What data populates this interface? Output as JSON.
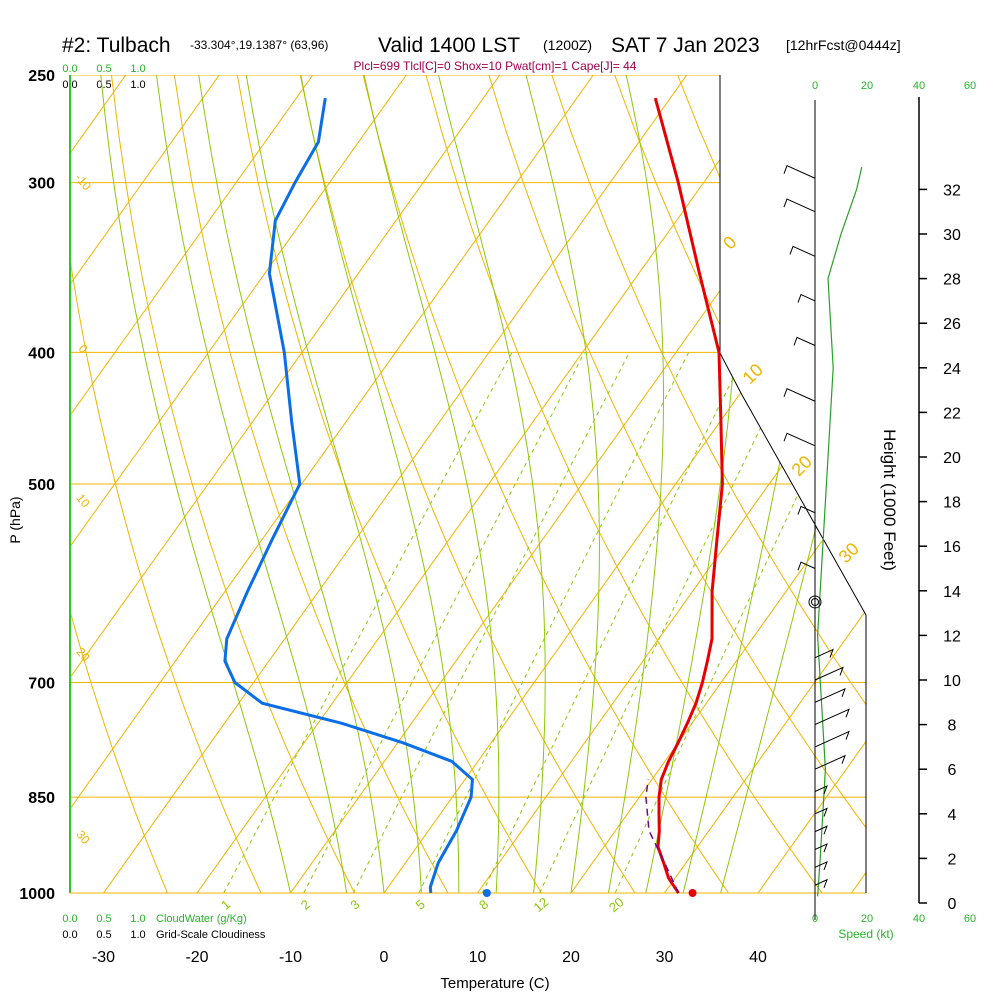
{
  "header": {
    "station": "#2: Tulbach",
    "coords": "-33.304°,19.1387° (63,96)",
    "valid": "Valid 1400 LST",
    "utc": "(1200Z)",
    "date": "SAT 7 Jan 2023",
    "forecast": "[12hrFcst@0444z]",
    "indices": "Plcl=699 Tlcl[C]=0 Shox=10 Pwat[cm]=1 Cape[J]= 44"
  },
  "scales": {
    "cloudwater_ticks": [
      "0.0",
      "0.5",
      "1.0"
    ],
    "cloudiness_ticks": [
      "0.0",
      "0.5",
      "1.0"
    ],
    "cloudwater_label": "CloudWater (g/Kg)",
    "cloudiness_label": "Grid-Scale Cloudiness",
    "speed_ticks": [
      "0",
      "20",
      "40",
      "60"
    ],
    "speed_label": "Speed (kt)"
  },
  "colors": {
    "isotherm": "#f0b400",
    "dry_adiabat": "#f0b400",
    "moist_adiabat": "#8cc80a",
    "mixing_ratio": "#8cc80a",
    "temperature": "#e60000",
    "dewpoint": "#0a6ee6",
    "parcel": "#6a0a8a",
    "wind": "#000000",
    "speed": "#28a028",
    "indices": "#a0004a"
  },
  "chart_data": {
    "type": "line",
    "title": "#2: Tulbach",
    "xlabel": "Temperature (C)",
    "ylabel": "P (hPa)",
    "y2label": "Height (1000 Feet)",
    "x_ticks": [
      -30,
      -20,
      -10,
      0,
      10,
      20,
      30,
      40
    ],
    "p_ticks": [
      250,
      300,
      400,
      500,
      700,
      850,
      1000
    ],
    "height_ticks": [
      0,
      2,
      4,
      6,
      8,
      10,
      12,
      14,
      16,
      18,
      20,
      22,
      24,
      26,
      28,
      30,
      32
    ],
    "xlim": [
      -35,
      52
    ],
    "plim": [
      250,
      1000
    ],
    "isotherm_labels": [
      {
        "t": -10,
        "label": "-10"
      },
      {
        "t": 0,
        "label": "0"
      },
      {
        "t": 10,
        "label": "10"
      },
      {
        "t": 20,
        "label": "20"
      },
      {
        "t": 30,
        "label": "30"
      }
    ],
    "left_temp_labels": [
      {
        "p": 303,
        "label": "-10"
      },
      {
        "p": 402,
        "label": "0"
      },
      {
        "p": 520,
        "label": "10"
      },
      {
        "p": 675,
        "label": "20"
      },
      {
        "p": 920,
        "label": "30"
      }
    ],
    "mixing_ratio_labels": [
      "1",
      "2",
      "3",
      "5",
      "8",
      "12",
      "20"
    ],
    "series": [
      {
        "name": "Temperature",
        "points": [
          {
            "p": 1000,
            "t": 31.5
          },
          {
            "p": 975,
            "t": 29.3
          },
          {
            "p": 950,
            "t": 27.6
          },
          {
            "p": 925,
            "t": 25.8
          },
          {
            "p": 900,
            "t": 24.7
          },
          {
            "p": 875,
            "t": 23.4
          },
          {
            "p": 850,
            "t": 22.1
          },
          {
            "p": 825,
            "t": 21.0
          },
          {
            "p": 800,
            "t": 20.4
          },
          {
            "p": 775,
            "t": 20.0
          },
          {
            "p": 750,
            "t": 19.5
          },
          {
            "p": 725,
            "t": 18.9
          },
          {
            "p": 700,
            "t": 18.0
          },
          {
            "p": 675,
            "t": 16.9
          },
          {
            "p": 650,
            "t": 15.7
          },
          {
            "p": 600,
            "t": 12.1
          },
          {
            "p": 550,
            "t": 8.7
          },
          {
            "p": 500,
            "t": 5.0
          },
          {
            "p": 450,
            "t": 0.1
          },
          {
            "p": 400,
            "t": -5.4
          },
          {
            "p": 350,
            "t": -13.5
          },
          {
            "p": 300,
            "t": -22.7
          },
          {
            "p": 260,
            "t": -31.6
          }
        ]
      },
      {
        "name": "Dewpoint",
        "points": [
          {
            "p": 1000,
            "t": 5.0
          },
          {
            "p": 990,
            "t": 4.5
          },
          {
            "p": 950,
            "t": 3.5
          },
          {
            "p": 900,
            "t": 3.0
          },
          {
            "p": 850,
            "t": 2.0
          },
          {
            "p": 825,
            "t": 0.8
          },
          {
            "p": 800,
            "t": -2.8
          },
          {
            "p": 775,
            "t": -9.5
          },
          {
            "p": 750,
            "t": -17.5
          },
          {
            "p": 725,
            "t": -27.5
          },
          {
            "p": 700,
            "t": -32.0
          },
          {
            "p": 675,
            "t": -34.7
          },
          {
            "p": 650,
            "t": -36.2
          },
          {
            "p": 600,
            "t": -37.6
          },
          {
            "p": 550,
            "t": -38.9
          },
          {
            "p": 500,
            "t": -40.2
          },
          {
            "p": 450,
            "t": -45.8
          },
          {
            "p": 400,
            "t": -51.9
          },
          {
            "p": 350,
            "t": -59.5
          },
          {
            "p": 320,
            "t": -62.9
          },
          {
            "p": 300,
            "t": -63.7
          },
          {
            "p": 280,
            "t": -64.3
          },
          {
            "p": 260,
            "t": -66.9
          }
        ]
      },
      {
        "name": "Parcel",
        "points": [
          {
            "p": 1000,
            "t": 31.5
          },
          {
            "p": 950,
            "t": 27.7
          },
          {
            "p": 900,
            "t": 23.6
          },
          {
            "p": 850,
            "t": 20.7
          },
          {
            "p": 825,
            "t": 19.6
          }
        ]
      }
    ],
    "surface_temp": 33,
    "surface_dewpoint": 11,
    "lcl_marker_height_kft": 13.5,
    "wind_speed_profile": [
      {
        "h": 0.3,
        "s": 1
      },
      {
        "h": 2,
        "s": 2
      },
      {
        "h": 4,
        "s": 3
      },
      {
        "h": 6,
        "s": 4
      },
      {
        "h": 8,
        "s": 3
      },
      {
        "h": 10,
        "s": 2
      },
      {
        "h": 12,
        "s": 1
      },
      {
        "h": 14,
        "s": 2
      },
      {
        "h": 16,
        "s": 3
      },
      {
        "h": 18,
        "s": 4
      },
      {
        "h": 20,
        "s": 5
      },
      {
        "h": 22,
        "s": 6
      },
      {
        "h": 24,
        "s": 7
      },
      {
        "h": 26,
        "s": 6
      },
      {
        "h": 28,
        "s": 5
      },
      {
        "h": 30,
        "s": 10
      },
      {
        "h": 32,
        "s": 16
      },
      {
        "h": 33,
        "s": 18
      }
    ],
    "wind_barbs": [
      {
        "h": 0.8,
        "len": 12
      },
      {
        "h": 1.6,
        "len": 12
      },
      {
        "h": 2.4,
        "len": 12
      },
      {
        "h": 3.2,
        "len": 12
      },
      {
        "h": 4.0,
        "len": 12
      },
      {
        "h": 5.0,
        "len": 12
      },
      {
        "h": 6.0,
        "len": 30
      },
      {
        "h": 7.0,
        "len": 34
      },
      {
        "h": 8.0,
        "len": 34
      },
      {
        "h": 9.0,
        "len": 30
      },
      {
        "h": 10.0,
        "len": 28
      },
      {
        "h": 11.0,
        "len": 18
      },
      {
        "h": 15.0,
        "len": 14
      },
      {
        "h": 17.5,
        "len": 14
      },
      {
        "h": 20.5,
        "len": 28
      },
      {
        "h": 22.5,
        "len": 28
      },
      {
        "h": 25.0,
        "len": 18
      },
      {
        "h": 27.0,
        "len": 14
      },
      {
        "h": 29.0,
        "len": 22
      },
      {
        "h": 31.0,
        "len": 28
      },
      {
        "h": 32.5,
        "len": 28
      }
    ]
  }
}
